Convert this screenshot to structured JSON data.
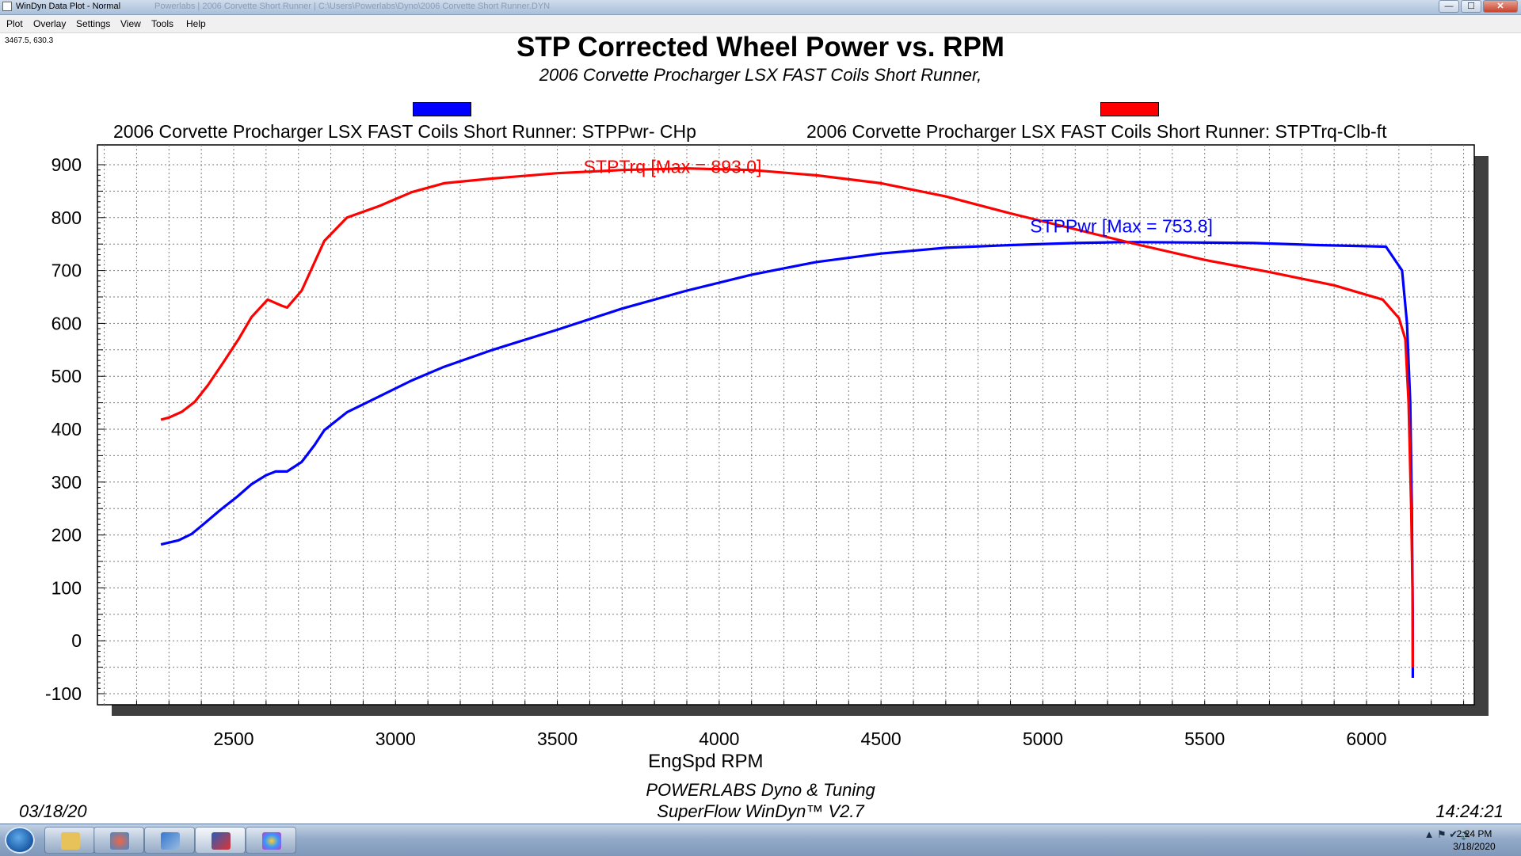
{
  "window": {
    "title": "WinDyn Data Plot - Normal",
    "path_hint": "Powerlabs | 2006 Corvette Short Runner | C:\\Users\\Powerlabs\\Dyno\\2006 Corvette Short Runner.DYN",
    "min_glyph": "—",
    "max_glyph": "☐",
    "close_glyph": "✕"
  },
  "menu": {
    "items": [
      "Plot",
      "Overlay",
      "Settings",
      "View",
      "Tools",
      "Help"
    ]
  },
  "cursor_readout": "3467.5, 630.3",
  "chart_data": {
    "type": "line",
    "title": "STP Corrected Wheel Power vs. RPM",
    "subtitle": "2006 Corvette Procharger LSX FAST Coils Short Runner,",
    "xlabel": "EngSpd  RPM",
    "ylabel": "",
    "xlim": [
      2100,
      6350
    ],
    "ylim": [
      -100,
      900
    ],
    "x_ticks": [
      2500,
      3000,
      3500,
      4000,
      4500,
      5000,
      5500,
      6000
    ],
    "y_ticks": [
      900,
      800,
      700,
      600,
      500,
      400,
      300,
      200,
      100,
      0,
      -100
    ],
    "grid": true,
    "legend": [
      {
        "label": "2006 Corvette Procharger LSX FAST Coils Short Runner: STPPwr- CHp",
        "color": "#0000ff"
      },
      {
        "label": "2006 Corvette Procharger LSX FAST Coils Short Runner: STPTrq-Clb-ft",
        "color": "#ff0000"
      }
    ],
    "annotations": [
      {
        "text": "STPTrq [Max = 893.0]",
        "color": "#ff0000"
      },
      {
        "text": "STPPwr [Max = 753.8]",
        "color": "#0000ff"
      }
    ],
    "series": [
      {
        "name": "STPPwr- CHp",
        "color": "#0000ff",
        "points": [
          [
            2275,
            182
          ],
          [
            2330,
            190
          ],
          [
            2370,
            202
          ],
          [
            2410,
            222
          ],
          [
            2460,
            248
          ],
          [
            2510,
            272
          ],
          [
            2555,
            296
          ],
          [
            2600,
            313
          ],
          [
            2630,
            320
          ],
          [
            2665,
            320
          ],
          [
            2710,
            338
          ],
          [
            2750,
            370
          ],
          [
            2780,
            398
          ],
          [
            2850,
            432
          ],
          [
            2950,
            462
          ],
          [
            3050,
            492
          ],
          [
            3150,
            518
          ],
          [
            3300,
            550
          ],
          [
            3500,
            588
          ],
          [
            3700,
            628
          ],
          [
            3900,
            662
          ],
          [
            4100,
            692
          ],
          [
            4300,
            716
          ],
          [
            4500,
            732
          ],
          [
            4700,
            743
          ],
          [
            4900,
            748
          ],
          [
            5100,
            752
          ],
          [
            5250,
            753.8
          ],
          [
            5450,
            753
          ],
          [
            5650,
            752
          ],
          [
            5850,
            748
          ],
          [
            6000,
            746
          ],
          [
            6060,
            745
          ],
          [
            6110,
            700
          ],
          [
            6125,
            600
          ],
          [
            6135,
            450
          ],
          [
            6140,
            250
          ],
          [
            6143,
            50
          ],
          [
            6143,
            -70
          ]
        ]
      },
      {
        "name": "STPTrq-Clb-ft",
        "color": "#ff0000",
        "points": [
          [
            2275,
            418
          ],
          [
            2300,
            422
          ],
          [
            2340,
            433
          ],
          [
            2380,
            452
          ],
          [
            2420,
            483
          ],
          [
            2470,
            528
          ],
          [
            2515,
            570
          ],
          [
            2555,
            612
          ],
          [
            2605,
            645
          ],
          [
            2650,
            633
          ],
          [
            2665,
            630
          ],
          [
            2710,
            662
          ],
          [
            2780,
            756
          ],
          [
            2850,
            800
          ],
          [
            2950,
            822
          ],
          [
            3050,
            848
          ],
          [
            3150,
            865
          ],
          [
            3300,
            874
          ],
          [
            3500,
            884
          ],
          [
            3700,
            890
          ],
          [
            3900,
            893
          ],
          [
            4100,
            890
          ],
          [
            4300,
            880
          ],
          [
            4500,
            865
          ],
          [
            4700,
            840
          ],
          [
            4900,
            808
          ],
          [
            5100,
            778
          ],
          [
            5300,
            748
          ],
          [
            5500,
            720
          ],
          [
            5700,
            697
          ],
          [
            5900,
            672
          ],
          [
            6050,
            645
          ],
          [
            6100,
            610
          ],
          [
            6120,
            570
          ],
          [
            6130,
            450
          ],
          [
            6138,
            250
          ],
          [
            6142,
            100
          ],
          [
            6143,
            -50
          ]
        ]
      }
    ]
  },
  "footer": {
    "line1": "POWERLABS Dyno & Tuning",
    "line2": "SuperFlow WinDyn™ V2.7",
    "date": "03/18/20",
    "time": "14:24:21"
  },
  "taskbar": {
    "apps": [
      "Windows Explorer",
      "Paint",
      "WinDyn",
      "WinDyn Data Plot",
      "Color Picker"
    ],
    "tray_icons": "▲  ⚑  ✔  🔊",
    "clock_time": "2:24 PM",
    "clock_date": "3/18/2020"
  }
}
